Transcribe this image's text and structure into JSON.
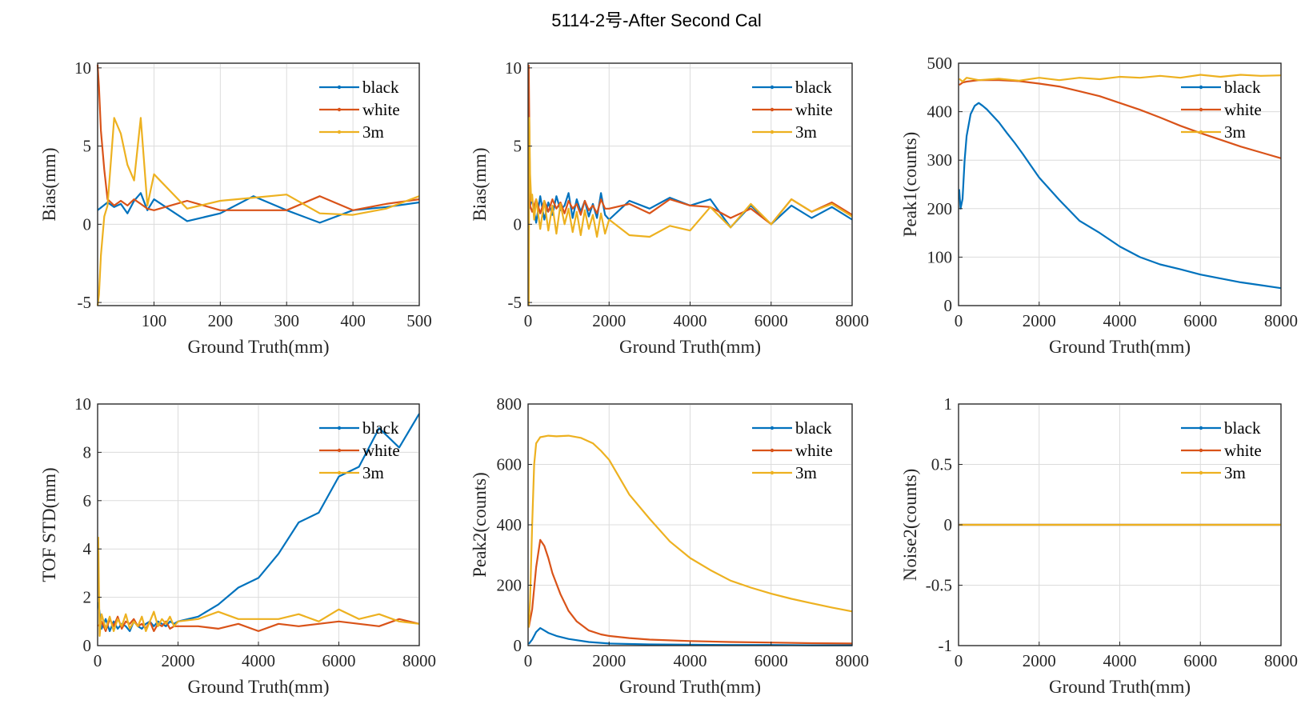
{
  "figure": {
    "title": "5114-2号-After Second Cal",
    "legend": [
      "black",
      "white",
      "3m"
    ]
  },
  "colors": {
    "black": "#0072BD",
    "white": "#D95319",
    "3m": "#EDB120"
  },
  "chart_data": [
    {
      "type": "line",
      "xlabel": "Ground Truth(mm)",
      "ylabel": "Bias(mm)",
      "xlim": [
        15,
        500
      ],
      "ylim": [
        -5.2,
        10.3
      ],
      "xticks": [
        100,
        200,
        300,
        400,
        500
      ],
      "yticks": [
        -5,
        0,
        5,
        10
      ],
      "legend_position": "top-right",
      "series": [
        {
          "name": "black",
          "x": [
            15,
            30,
            40,
            50,
            60,
            70,
            80,
            90,
            100,
            150,
            200,
            250,
            300,
            350,
            400,
            450,
            500
          ],
          "y": [
            0.9,
            1.4,
            1.1,
            1.3,
            0.7,
            1.5,
            2.0,
            0.9,
            1.6,
            0.2,
            0.7,
            1.8,
            0.9,
            0.1,
            0.9,
            1.1,
            1.4
          ]
        },
        {
          "name": "white",
          "x": [
            15,
            17,
            20,
            25,
            30,
            40,
            50,
            60,
            70,
            80,
            90,
            100,
            150,
            200,
            250,
            300,
            350,
            400,
            450,
            500
          ],
          "y": [
            10.2,
            8.8,
            6.0,
            3.5,
            1.6,
            1.2,
            1.5,
            1.2,
            1.6,
            1.3,
            1.0,
            0.9,
            1.5,
            0.9,
            0.9,
            0.9,
            1.8,
            0.9,
            1.3,
            1.6
          ]
        },
        {
          "name": "3m",
          "x": [
            15,
            17,
            20,
            25,
            30,
            40,
            50,
            60,
            70,
            80,
            90,
            100,
            150,
            200,
            250,
            300,
            350,
            400,
            450,
            500
          ],
          "y": [
            -5.2,
            -4.5,
            -2.0,
            0.5,
            1.2,
            6.8,
            5.8,
            3.8,
            2.8,
            6.8,
            1.2,
            3.2,
            1.0,
            1.5,
            1.7,
            1.9,
            0.7,
            0.6,
            1.0,
            1.8
          ]
        }
      ]
    },
    {
      "type": "line",
      "xlabel": "Ground Truth(mm)",
      "ylabel": "Bias(mm)",
      "xlim": [
        0,
        8000
      ],
      "ylim": [
        -5.2,
        10.3
      ],
      "xticks": [
        0,
        2000,
        4000,
        6000,
        8000
      ],
      "yticks": [
        -5,
        0,
        5,
        10
      ],
      "legend_position": "top-right",
      "series": [
        {
          "name": "black",
          "x": [
            15,
            100,
            200,
            300,
            400,
            500,
            600,
            700,
            800,
            900,
            1000,
            1100,
            1200,
            1300,
            1400,
            1500,
            1600,
            1700,
            1800,
            1900,
            2000,
            2500,
            3000,
            3500,
            4000,
            4500,
            5000,
            5500,
            6000,
            6500,
            7000,
            7500,
            8000
          ],
          "y": [
            0.9,
            1.6,
            0.1,
            1.8,
            0.3,
            1.4,
            0.6,
            1.8,
            0.9,
            1.2,
            2.0,
            0.4,
            1.6,
            0.8,
            1.5,
            0.5,
            1.3,
            0.4,
            2.0,
            0.6,
            0.3,
            1.5,
            1.0,
            1.7,
            1.2,
            1.6,
            -0.2,
            1.2,
            0.0,
            1.2,
            0.4,
            1.1,
            0.3
          ]
        },
        {
          "name": "white",
          "x": [
            15,
            50,
            100,
            200,
            300,
            400,
            500,
            600,
            700,
            800,
            900,
            1000,
            1100,
            1200,
            1300,
            1400,
            1500,
            1600,
            1700,
            1800,
            1900,
            2000,
            2500,
            3000,
            3500,
            4000,
            4500,
            5000,
            5500,
            6000,
            6500,
            7000,
            7500,
            8000
          ],
          "y": [
            10.2,
            1.2,
            0.8,
            1.6,
            0.7,
            1.5,
            0.8,
            1.6,
            1.0,
            1.4,
            0.7,
            1.5,
            1.0,
            1.3,
            0.6,
            1.5,
            0.9,
            1.2,
            0.7,
            1.6,
            1.0,
            1.0,
            1.3,
            0.7,
            1.6,
            1.2,
            1.1,
            0.4,
            1.0,
            0.0,
            1.6,
            0.8,
            1.4,
            0.6
          ]
        },
        {
          "name": "3m",
          "x": [
            15,
            30,
            50,
            80,
            100,
            150,
            200,
            300,
            400,
            500,
            600,
            700,
            800,
            900,
            1000,
            1100,
            1200,
            1300,
            1400,
            1500,
            1600,
            1700,
            1800,
            1900,
            2000,
            2500,
            3000,
            3500,
            4000,
            4500,
            5000,
            5500,
            6000,
            6500,
            7000,
            7500,
            8000
          ],
          "y": [
            -5.2,
            6.8,
            3.2,
            1.5,
            1.9,
            0.3,
            1.6,
            -0.3,
            1.5,
            -0.4,
            1.2,
            -0.6,
            1.3,
            0.0,
            1.0,
            -0.5,
            0.8,
            -0.7,
            0.9,
            -0.3,
            0.6,
            -0.8,
            0.7,
            -0.6,
            0.3,
            -0.7,
            -0.8,
            -0.1,
            -0.4,
            1.1,
            -0.2,
            1.3,
            0.0,
            1.6,
            0.8,
            1.3,
            0.5
          ]
        }
      ]
    },
    {
      "type": "line",
      "xlabel": "Ground Truth(mm)",
      "ylabel": "Peak1(counts)",
      "xlim": [
        0,
        8000
      ],
      "ylim": [
        0,
        500
      ],
      "xticks": [
        0,
        2000,
        4000,
        6000,
        8000
      ],
      "yticks": [
        0,
        100,
        200,
        300,
        400,
        500
      ],
      "legend_position": "top-right",
      "series": [
        {
          "name": "black",
          "x": [
            15,
            50,
            100,
            150,
            200,
            300,
            400,
            500,
            600,
            700,
            800,
            1000,
            1200,
            1400,
            1600,
            1800,
            2000,
            2500,
            3000,
            3500,
            4000,
            4500,
            5000,
            5500,
            6000,
            6500,
            7000,
            7500,
            8000
          ],
          "y": [
            240,
            200,
            220,
            300,
            350,
            395,
            412,
            418,
            412,
            405,
            396,
            378,
            356,
            335,
            312,
            288,
            264,
            218,
            175,
            150,
            122,
            100,
            85,
            75,
            64,
            56,
            48,
            42,
            36
          ]
        },
        {
          "name": "white",
          "x": [
            15,
            100,
            200,
            500,
            1000,
            1500,
            2000,
            2500,
            3000,
            3500,
            4000,
            4500,
            5000,
            5500,
            6000,
            6500,
            7000,
            7500,
            8000
          ],
          "y": [
            455,
            460,
            462,
            465,
            465,
            463,
            458,
            452,
            442,
            432,
            418,
            404,
            388,
            371,
            356,
            342,
            328,
            316,
            304
          ]
        },
        {
          "name": "3m",
          "x": [
            15,
            100,
            200,
            500,
            1000,
            1500,
            2000,
            2500,
            3000,
            3500,
            4000,
            4500,
            5000,
            5500,
            6000,
            6500,
            7000,
            7500,
            8000
          ],
          "y": [
            468,
            462,
            470,
            465,
            468,
            464,
            470,
            465,
            470,
            467,
            472,
            470,
            474,
            470,
            476,
            472,
            476,
            474,
            475
          ]
        }
      ]
    },
    {
      "type": "line",
      "xlabel": "Ground Truth(mm)",
      "ylabel": "TOF STD(mm)",
      "xlim": [
        0,
        8000
      ],
      "ylim": [
        0,
        10
      ],
      "xticks": [
        0,
        2000,
        4000,
        6000,
        8000
      ],
      "yticks": [
        0,
        2,
        4,
        6,
        8,
        10
      ],
      "legend_position": "top-right",
      "series": [
        {
          "name": "black",
          "x": [
            15,
            100,
            200,
            300,
            400,
            500,
            600,
            700,
            800,
            900,
            1000,
            1100,
            1200,
            1300,
            1400,
            1500,
            1600,
            1700,
            1800,
            1900,
            2000,
            2500,
            3000,
            3500,
            4000,
            4500,
            5000,
            5500,
            6000,
            6500,
            7000,
            7500,
            8000
          ],
          "y": [
            1.8,
            0.7,
            1.1,
            0.6,
            1.0,
            0.7,
            0.9,
            0.8,
            0.6,
            1.0,
            0.8,
            0.7,
            0.9,
            1.0,
            0.8,
            1.0,
            0.9,
            0.8,
            1.0,
            0.9,
            1.0,
            1.2,
            1.7,
            2.4,
            2.8,
            3.8,
            5.1,
            5.5,
            7.0,
            7.4,
            9.0,
            8.2,
            9.6
          ]
        },
        {
          "name": "white",
          "x": [
            15,
            100,
            200,
            300,
            400,
            500,
            600,
            700,
            800,
            900,
            1000,
            1100,
            1200,
            1300,
            1400,
            1500,
            1600,
            1700,
            1800,
            1900,
            2000,
            2500,
            3000,
            3500,
            4000,
            4500,
            5000,
            5500,
            6000,
            6500,
            7000,
            7500,
            8000
          ],
          "y": [
            0.8,
            1.0,
            0.6,
            1.1,
            0.8,
            1.2,
            0.7,
            1.0,
            0.9,
            1.1,
            0.8,
            0.9,
            0.7,
            1.0,
            0.6,
            0.9,
            0.8,
            1.0,
            0.7,
            0.8,
            0.8,
            0.8,
            0.7,
            0.9,
            0.6,
            0.9,
            0.8,
            0.9,
            1.0,
            0.9,
            0.8,
            1.1,
            0.9
          ]
        },
        {
          "name": "3m",
          "x": [
            15,
            50,
            100,
            200,
            300,
            400,
            500,
            600,
            700,
            800,
            900,
            1000,
            1100,
            1200,
            1300,
            1400,
            1500,
            1600,
            1700,
            1800,
            1900,
            2000,
            2500,
            3000,
            3500,
            4000,
            4500,
            5000,
            5500,
            6000,
            6500,
            7000,
            7500,
            8000
          ],
          "y": [
            4.5,
            0.4,
            1.3,
            0.7,
            1.2,
            0.6,
            1.1,
            0.8,
            1.3,
            0.7,
            1.0,
            0.8,
            1.2,
            0.6,
            1.0,
            1.4,
            0.8,
            1.1,
            0.9,
            1.2,
            0.8,
            1.0,
            1.1,
            1.4,
            1.1,
            1.1,
            1.1,
            1.3,
            1.0,
            1.5,
            1.1,
            1.3,
            1.0,
            0.9
          ]
        }
      ]
    },
    {
      "type": "line",
      "xlabel": "Ground Truth(mm)",
      "ylabel": "Peak2(counts)",
      "xlim": [
        0,
        8000
      ],
      "ylim": [
        0,
        800
      ],
      "xticks": [
        0,
        2000,
        4000,
        6000,
        8000
      ],
      "yticks": [
        0,
        200,
        400,
        600,
        800
      ],
      "legend_position": "top-right",
      "series": [
        {
          "name": "black",
          "x": [
            15,
            100,
            200,
            300,
            400,
            500,
            700,
            1000,
            1500,
            2000,
            3000,
            4000,
            5000,
            6000,
            7000,
            8000
          ],
          "y": [
            5,
            20,
            45,
            58,
            50,
            42,
            32,
            22,
            12,
            7,
            4,
            3,
            2,
            2,
            1,
            1
          ]
        },
        {
          "name": "white",
          "x": [
            15,
            100,
            200,
            300,
            400,
            500,
            600,
            800,
            1000,
            1200,
            1500,
            1800,
            2000,
            2500,
            3000,
            4000,
            5000,
            6000,
            7000,
            8000
          ],
          "y": [
            60,
            120,
            260,
            350,
            330,
            290,
            240,
            170,
            115,
            80,
            50,
            37,
            32,
            25,
            20,
            15,
            12,
            10,
            8,
            7
          ]
        },
        {
          "name": "3m",
          "x": [
            15,
            50,
            100,
            150,
            200,
            300,
            500,
            700,
            1000,
            1300,
            1600,
            1800,
            2000,
            2500,
            3000,
            3500,
            4000,
            4500,
            5000,
            5500,
            6000,
            6500,
            7000,
            7500,
            8000
          ],
          "y": [
            60,
            150,
            400,
            600,
            670,
            690,
            695,
            693,
            695,
            688,
            670,
            645,
            615,
            500,
            420,
            345,
            290,
            250,
            215,
            192,
            172,
            155,
            140,
            126,
            113
          ]
        }
      ]
    },
    {
      "type": "line",
      "xlabel": "Ground Truth(mm)",
      "ylabel": "Noise2(counts)",
      "xlim": [
        0,
        8000
      ],
      "ylim": [
        -1,
        1
      ],
      "xticks": [
        0,
        2000,
        4000,
        6000,
        8000
      ],
      "yticks": [
        -1,
        -0.5,
        0,
        0.5,
        1
      ],
      "legend_position": "top-right",
      "series": [
        {
          "name": "black",
          "x": [
            15,
            8000
          ],
          "y": [
            0,
            0
          ]
        },
        {
          "name": "white",
          "x": [
            15,
            8000
          ],
          "y": [
            0,
            0
          ]
        },
        {
          "name": "3m",
          "x": [
            15,
            8000
          ],
          "y": [
            0,
            0
          ]
        }
      ]
    }
  ]
}
